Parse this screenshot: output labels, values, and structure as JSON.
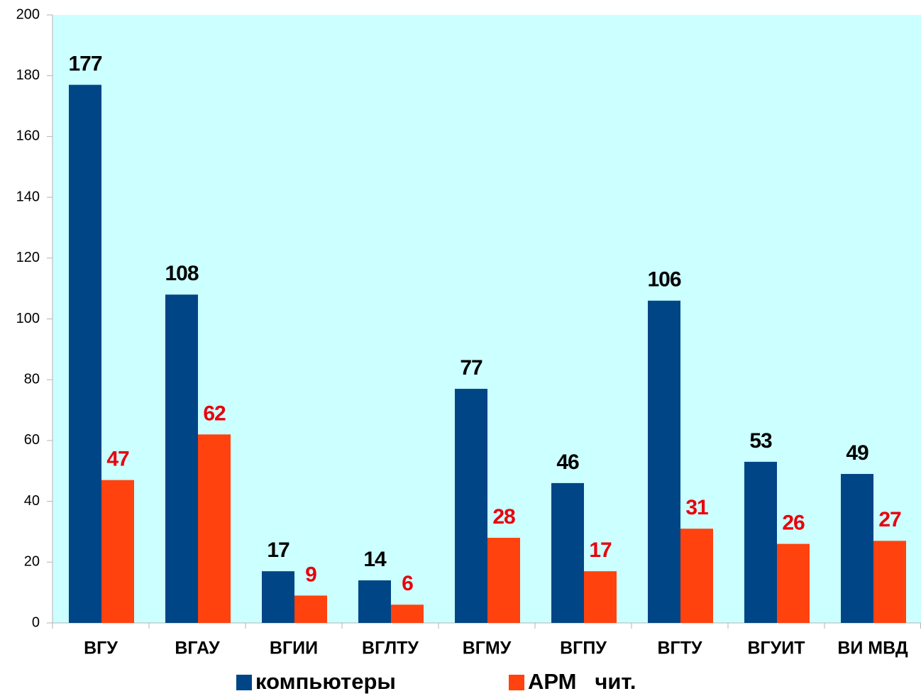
{
  "chart_data": {
    "type": "bar",
    "categories": [
      "ВГУ",
      "ВГАУ",
      "ВГИИ",
      "ВГЛТУ",
      "ВГМУ",
      "ВГПУ",
      "ВГТУ",
      "ВГУИТ",
      "ВИ МВД"
    ],
    "series": [
      {
        "name": "компьютеры",
        "color": "#004586",
        "label_color": "#000000",
        "values": [
          177,
          108,
          17,
          14,
          77,
          46,
          106,
          53,
          49
        ]
      },
      {
        "name": "АРМ   чит.",
        "color": "#ff420e",
        "label_color": "#e8000b",
        "values": [
          47,
          62,
          9,
          6,
          28,
          17,
          31,
          26,
          27
        ]
      }
    ],
    "ylim": [
      0,
      200
    ],
    "yticks": [
      0,
      20,
      40,
      60,
      80,
      100,
      120,
      140,
      160,
      180,
      200
    ],
    "plot_background": "#ccffff",
    "legend": "bottom"
  }
}
